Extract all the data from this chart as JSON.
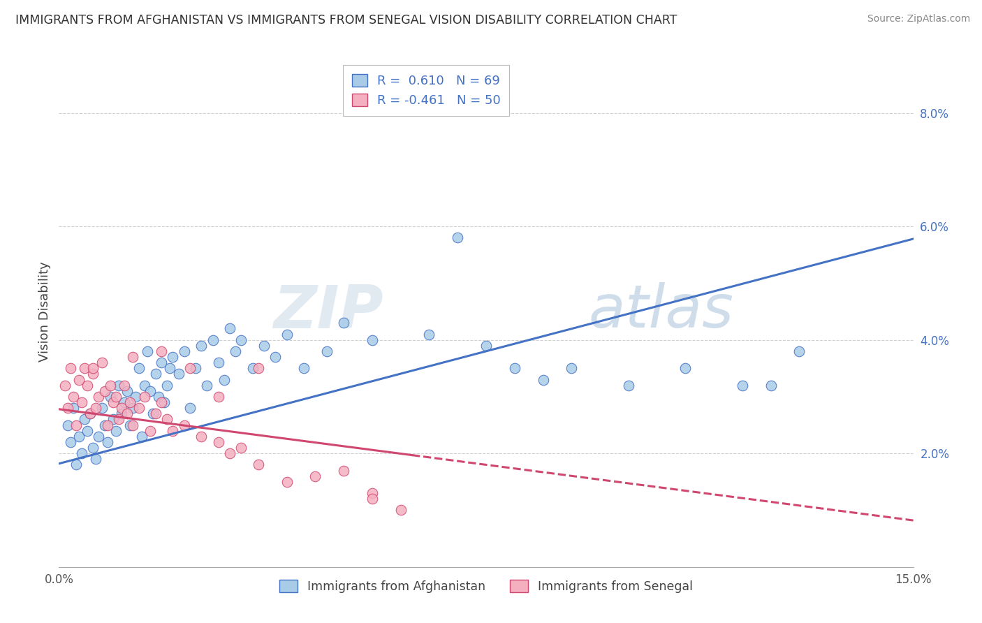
{
  "title": "IMMIGRANTS FROM AFGHANISTAN VS IMMIGRANTS FROM SENEGAL VISION DISABILITY CORRELATION CHART",
  "source": "Source: ZipAtlas.com",
  "ylabel": "Vision Disability",
  "xlim": [
    0.0,
    15.0
  ],
  "ylim": [
    0.0,
    9.0
  ],
  "yticks": [
    2.0,
    4.0,
    6.0,
    8.0
  ],
  "xticks": [
    0.0,
    15.0
  ],
  "R_afg": "0.610",
  "N_afg": "69",
  "R_sen": "-0.461",
  "N_sen": "50",
  "color_afghanistan_fill": "#a8cce8",
  "color_afghanistan_edge": "#4472C4",
  "color_senegal_fill": "#f5b0c0",
  "color_senegal_edge": "#d04870",
  "color_line_afghanistan": "#4472C4",
  "color_line_senegal": "#d04870",
  "watermark_color": "#c8d8ea",
  "legend_text_color": "#4472C4",
  "afg_line_start_y": 1.82,
  "afg_line_end_y": 5.78,
  "sen_line_start_y": 2.78,
  "sen_line_end_y": 0.82,
  "sen_solid_end_x": 6.2,
  "afghanistan_x": [
    0.15,
    0.2,
    0.25,
    0.3,
    0.35,
    0.4,
    0.45,
    0.5,
    0.55,
    0.6,
    0.65,
    0.7,
    0.75,
    0.8,
    0.85,
    0.9,
    0.95,
    1.0,
    1.05,
    1.1,
    1.15,
    1.2,
    1.25,
    1.3,
    1.35,
    1.4,
    1.45,
    1.5,
    1.55,
    1.6,
    1.65,
    1.7,
    1.75,
    1.8,
    1.85,
    1.9,
    1.95,
    2.0,
    2.1,
    2.2,
    2.3,
    2.4,
    2.5,
    2.6,
    2.7,
    2.8,
    2.9,
    3.0,
    3.1,
    3.2,
    3.4,
    3.6,
    3.8,
    4.0,
    4.3,
    4.7,
    5.0,
    5.5,
    6.5,
    7.5,
    8.5,
    9.0,
    10.0,
    11.0,
    12.5,
    13.0,
    7.0,
    8.0,
    12.0
  ],
  "afghanistan_y": [
    2.5,
    2.2,
    2.8,
    1.8,
    2.3,
    2.0,
    2.6,
    2.4,
    2.7,
    2.1,
    1.9,
    2.3,
    2.8,
    2.5,
    2.2,
    3.0,
    2.6,
    2.4,
    3.2,
    2.7,
    2.9,
    3.1,
    2.5,
    2.8,
    3.0,
    3.5,
    2.3,
    3.2,
    3.8,
    3.1,
    2.7,
    3.4,
    3.0,
    3.6,
    2.9,
    3.2,
    3.5,
    3.7,
    3.4,
    3.8,
    2.8,
    3.5,
    3.9,
    3.2,
    4.0,
    3.6,
    3.3,
    4.2,
    3.8,
    4.0,
    3.5,
    3.9,
    3.7,
    4.1,
    3.5,
    3.8,
    4.3,
    4.0,
    4.1,
    3.9,
    3.3,
    3.5,
    3.2,
    3.5,
    3.2,
    3.8,
    5.8,
    3.5,
    3.2
  ],
  "senegal_x": [
    0.1,
    0.15,
    0.2,
    0.25,
    0.3,
    0.35,
    0.4,
    0.45,
    0.5,
    0.55,
    0.6,
    0.65,
    0.7,
    0.75,
    0.8,
    0.85,
    0.9,
    0.95,
    1.0,
    1.05,
    1.1,
    1.15,
    1.2,
    1.25,
    1.3,
    1.4,
    1.5,
    1.6,
    1.7,
    1.8,
    1.9,
    2.0,
    2.2,
    2.5,
    2.8,
    3.0,
    3.2,
    3.5,
    4.0,
    4.5,
    5.0,
    5.5,
    6.0,
    0.6,
    1.3,
    1.8,
    2.3,
    2.8,
    3.5,
    5.5
  ],
  "senegal_y": [
    3.2,
    2.8,
    3.5,
    3.0,
    2.5,
    3.3,
    2.9,
    3.5,
    3.2,
    2.7,
    3.4,
    2.8,
    3.0,
    3.6,
    3.1,
    2.5,
    3.2,
    2.9,
    3.0,
    2.6,
    2.8,
    3.2,
    2.7,
    2.9,
    2.5,
    2.8,
    3.0,
    2.4,
    2.7,
    2.9,
    2.6,
    2.4,
    2.5,
    2.3,
    2.2,
    2.0,
    2.1,
    1.8,
    1.5,
    1.6,
    1.7,
    1.3,
    1.0,
    3.5,
    3.7,
    3.8,
    3.5,
    3.0,
    3.5,
    1.2
  ]
}
